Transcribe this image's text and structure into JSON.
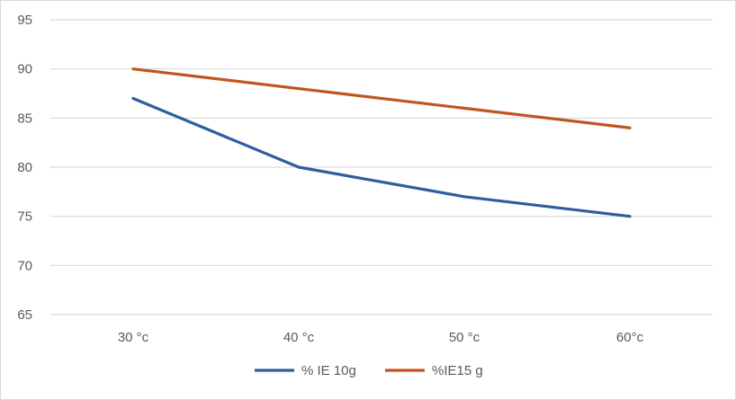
{
  "chart_data": {
    "type": "line",
    "categories": [
      "30 °c",
      "40 °c",
      "50 °c",
      "60°c"
    ],
    "series": [
      {
        "name": "% IE 10g",
        "values": [
          87,
          80,
          77,
          75
        ],
        "color": "#2e5e9e"
      },
      {
        "name": "%IE15 g",
        "values": [
          90,
          88,
          86,
          84
        ],
        "color": "#c0561e"
      }
    ],
    "yticks": [
      65,
      70,
      75,
      80,
      85,
      90,
      95
    ],
    "ylim": [
      65,
      95
    ],
    "grid": true,
    "legend": "bottom",
    "gridColor": "#d9d9d9"
  }
}
